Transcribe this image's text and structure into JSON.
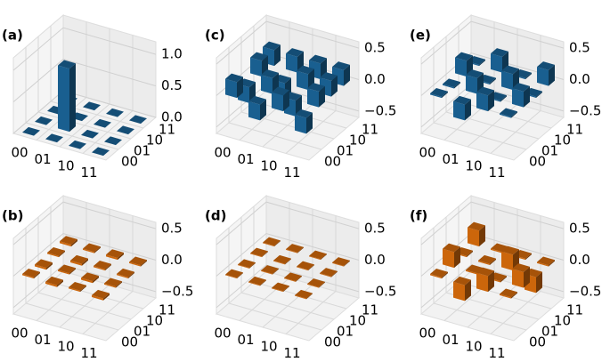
{
  "chart_data": [
    {
      "type": "bar3d",
      "label": "(a)",
      "color": "#1f77b4",
      "x_categories": [
        "00",
        "01",
        "10",
        "11"
      ],
      "y_categories": [
        "00",
        "01",
        "10",
        "11"
      ],
      "values": [
        [
          0,
          0,
          0,
          0
        ],
        [
          0,
          1,
          0,
          0
        ],
        [
          0,
          0,
          0,
          0
        ],
        [
          0,
          0,
          0,
          0
        ]
      ],
      "zlim": [
        0,
        1.2
      ],
      "zticks": [
        {
          "value": 0,
          "label": "0.0"
        },
        {
          "value": 0.5,
          "label": "0.5"
        },
        {
          "value": 1,
          "label": "1.0"
        }
      ]
    },
    {
      "type": "bar3d",
      "label": "(c)",
      "color": "#1f77b4",
      "x_categories": [
        "00",
        "01",
        "10",
        "11"
      ],
      "y_categories": [
        "00",
        "01",
        "10",
        "11"
      ],
      "values": [
        [
          0.25,
          -0.25,
          0.25,
          0.25
        ],
        [
          -0.25,
          0.25,
          -0.25,
          0.25
        ],
        [
          0.25,
          -0.25,
          0.25,
          0.25
        ],
        [
          -0.25,
          0.25,
          0.25,
          0.25
        ]
      ],
      "zlim": [
        -0.6,
        0.6
      ],
      "zticks": [
        {
          "value": -0.5,
          "label": "−0.5"
        },
        {
          "value": 0,
          "label": "0.0"
        },
        {
          "value": 0.5,
          "label": "0.5"
        }
      ]
    },
    {
      "type": "bar3d",
      "label": "(e)",
      "color": "#1f77b4",
      "x_categories": [
        "00",
        "01",
        "10",
        "11"
      ],
      "y_categories": [
        "00",
        "01",
        "10",
        "11"
      ],
      "values": [
        [
          0.02,
          -0.02,
          0.25,
          0.02
        ],
        [
          -0.25,
          0.25,
          -0.02,
          0.25
        ],
        [
          0.25,
          -0.02,
          0.25,
          0.02
        ],
        [
          0.02,
          0.25,
          -0.02,
          0.25
        ]
      ],
      "zlim": [
        -0.6,
        0.6
      ],
      "zticks": [
        {
          "value": -0.5,
          "label": "−0.5"
        },
        {
          "value": 0,
          "label": "0.0"
        },
        {
          "value": 0.5,
          "label": "0.5"
        }
      ]
    },
    {
      "type": "bar3d",
      "label": "(b)",
      "color": "#ff7f0e",
      "x_categories": [
        "00",
        "01",
        "10",
        "11"
      ],
      "y_categories": [
        "00",
        "01",
        "10",
        "11"
      ],
      "values": [
        [
          0.02,
          -0.03,
          0.02,
          0.03
        ],
        [
          -0.03,
          0.02,
          -0.03,
          0.02
        ],
        [
          0.02,
          -0.03,
          0.02,
          0.03
        ],
        [
          -0.03,
          0.02,
          -0.02,
          0.02
        ]
      ],
      "zlim": [
        -0.6,
        0.6
      ],
      "zticks": [
        {
          "value": -0.5,
          "label": "−0.5"
        },
        {
          "value": 0,
          "label": "0.0"
        },
        {
          "value": 0.5,
          "label": "0.5"
        }
      ]
    },
    {
      "type": "bar3d",
      "label": "(d)",
      "color": "#ff7f0e",
      "x_categories": [
        "00",
        "01",
        "10",
        "11"
      ],
      "y_categories": [
        "00",
        "01",
        "10",
        "11"
      ],
      "values": [
        [
          0.01,
          -0.01,
          0.01,
          0.01
        ],
        [
          -0.01,
          0.01,
          -0.01,
          0.01
        ],
        [
          0.01,
          -0.01,
          0.01,
          0.01
        ],
        [
          -0.01,
          0.01,
          0.01,
          0.01
        ]
      ],
      "zlim": [
        -0.6,
        0.6
      ],
      "zticks": [
        {
          "value": -0.5,
          "label": "−0.5"
        },
        {
          "value": 0,
          "label": "0.0"
        },
        {
          "value": 0.5,
          "label": "0.5"
        }
      ]
    },
    {
      "type": "bar3d",
      "label": "(f)",
      "color": "#ff7f0e",
      "x_categories": [
        "00",
        "01",
        "10",
        "11"
      ],
      "y_categories": [
        "00",
        "01",
        "10",
        "11"
      ],
      "values": [
        [
          0.02,
          0.25,
          0.02,
          0.25
        ],
        [
          -0.25,
          0.02,
          -0.02,
          0.02
        ],
        [
          0.25,
          -0.02,
          0.25,
          0.02
        ],
        [
          0.02,
          0.25,
          -0.25,
          0.02
        ]
      ],
      "zlim": [
        -0.6,
        0.6
      ],
      "zticks": [
        {
          "value": -0.5,
          "label": "−0.5"
        },
        {
          "value": 0,
          "label": "0.0"
        },
        {
          "value": 0.5,
          "label": "0.5"
        }
      ]
    }
  ]
}
